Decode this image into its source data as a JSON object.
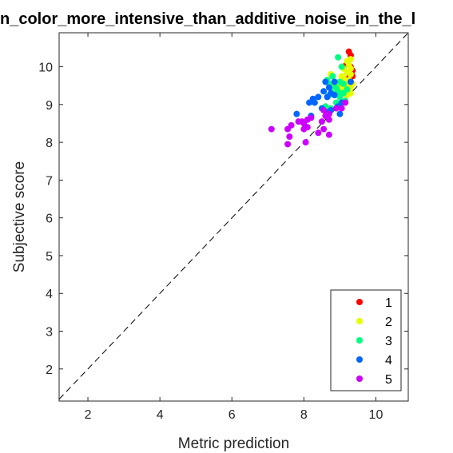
{
  "chart_data": {
    "type": "scatter",
    "title": "n_color_more_intensive_than_additive_noise_in_the_l",
    "xlabel": "Metric prediction",
    "ylabel": "Subjective score",
    "xlim": [
      1.2,
      10.9
    ],
    "ylim": [
      1.15,
      10.9
    ],
    "xticks": [
      2,
      4,
      6,
      8,
      10
    ],
    "yticks": [
      2,
      3,
      4,
      5,
      6,
      7,
      8,
      9,
      10
    ],
    "grid": false,
    "legend_position": "bottom-right",
    "reference_line": "dashed diagonal y = x",
    "series": [
      {
        "name": "1",
        "color": "#ff0000",
        "points": [
          [
            9.25,
            10.4
          ],
          [
            9.3,
            10.3
          ],
          [
            9.2,
            10.1
          ],
          [
            9.3,
            10.0
          ],
          [
            9.1,
            10.0
          ],
          [
            9.3,
            9.9
          ],
          [
            9.2,
            9.85
          ],
          [
            9.35,
            9.75
          ],
          [
            9.25,
            9.7
          ],
          [
            9.3,
            9.6
          ],
          [
            9.35,
            9.9
          ]
        ]
      },
      {
        "name": "2",
        "color": "#e6ff00",
        "points": [
          [
            9.3,
            10.2
          ],
          [
            9.2,
            10.15
          ],
          [
            9.25,
            10.05
          ],
          [
            9.1,
            9.95
          ],
          [
            9.3,
            9.95
          ],
          [
            8.75,
            9.8
          ],
          [
            9.2,
            9.85
          ],
          [
            9.05,
            9.75
          ],
          [
            9.3,
            9.8
          ],
          [
            9.1,
            9.7
          ],
          [
            9.25,
            9.65
          ],
          [
            9.35,
            9.55
          ],
          [
            9.2,
            9.55
          ],
          [
            9.0,
            9.5
          ],
          [
            9.15,
            9.45
          ],
          [
            9.3,
            9.45
          ],
          [
            8.85,
            9.5
          ],
          [
            8.95,
            9.4
          ],
          [
            9.05,
            9.35
          ],
          [
            9.3,
            9.3
          ],
          [
            9.2,
            9.25
          ],
          [
            8.9,
            9.3
          ]
        ]
      },
      {
        "name": "3",
        "color": "#00ff80",
        "points": [
          [
            8.95,
            10.25
          ],
          [
            9.05,
            10.0
          ],
          [
            8.8,
            9.75
          ],
          [
            8.65,
            9.65
          ],
          [
            8.7,
            9.55
          ],
          [
            8.85,
            9.6
          ],
          [
            9.0,
            9.6
          ],
          [
            9.1,
            9.55
          ],
          [
            8.9,
            9.45
          ],
          [
            8.75,
            9.45
          ],
          [
            8.95,
            9.35
          ],
          [
            9.1,
            9.3
          ],
          [
            8.8,
            9.3
          ],
          [
            8.7,
            9.25
          ],
          [
            9.0,
            9.2
          ],
          [
            9.15,
            9.1
          ],
          [
            8.9,
            9.05
          ],
          [
            8.6,
            8.95
          ],
          [
            8.75,
            8.9
          ],
          [
            9.2,
            9.4
          ]
        ]
      },
      {
        "name": "4",
        "color": "#0066ff",
        "points": [
          [
            8.6,
            9.6
          ],
          [
            8.85,
            9.6
          ],
          [
            8.7,
            9.45
          ],
          [
            8.55,
            9.35
          ],
          [
            8.75,
            9.3
          ],
          [
            8.85,
            9.25
          ],
          [
            8.65,
            9.2
          ],
          [
            8.4,
            9.2
          ],
          [
            8.25,
            9.15
          ],
          [
            8.3,
            9.05
          ],
          [
            8.15,
            9.05
          ],
          [
            9.05,
            9.05
          ],
          [
            8.95,
            8.95
          ],
          [
            8.5,
            8.9
          ],
          [
            8.75,
            8.85
          ],
          [
            8.65,
            8.8
          ],
          [
            7.8,
            8.75
          ],
          [
            8.2,
            8.7
          ],
          [
            9.0,
            8.75
          ],
          [
            9.3,
            9.6
          ]
        ]
      },
      {
        "name": "5",
        "color": "#cc00ff",
        "points": [
          [
            9.15,
            9.05
          ],
          [
            9.05,
            8.9
          ],
          [
            8.9,
            8.9
          ],
          [
            8.55,
            8.85
          ],
          [
            8.7,
            8.75
          ],
          [
            8.6,
            8.7
          ],
          [
            8.2,
            8.65
          ],
          [
            8.1,
            8.6
          ],
          [
            7.95,
            8.55
          ],
          [
            8.0,
            8.5
          ],
          [
            7.85,
            8.55
          ],
          [
            8.7,
            8.6
          ],
          [
            8.5,
            8.55
          ],
          [
            7.65,
            8.45
          ],
          [
            7.55,
            8.35
          ],
          [
            7.1,
            8.35
          ],
          [
            8.1,
            8.4
          ],
          [
            8.0,
            8.35
          ],
          [
            8.55,
            8.35
          ],
          [
            7.6,
            8.15
          ],
          [
            8.4,
            8.25
          ],
          [
            8.7,
            8.2
          ],
          [
            7.55,
            7.95
          ],
          [
            8.05,
            8.0
          ]
        ]
      }
    ]
  }
}
